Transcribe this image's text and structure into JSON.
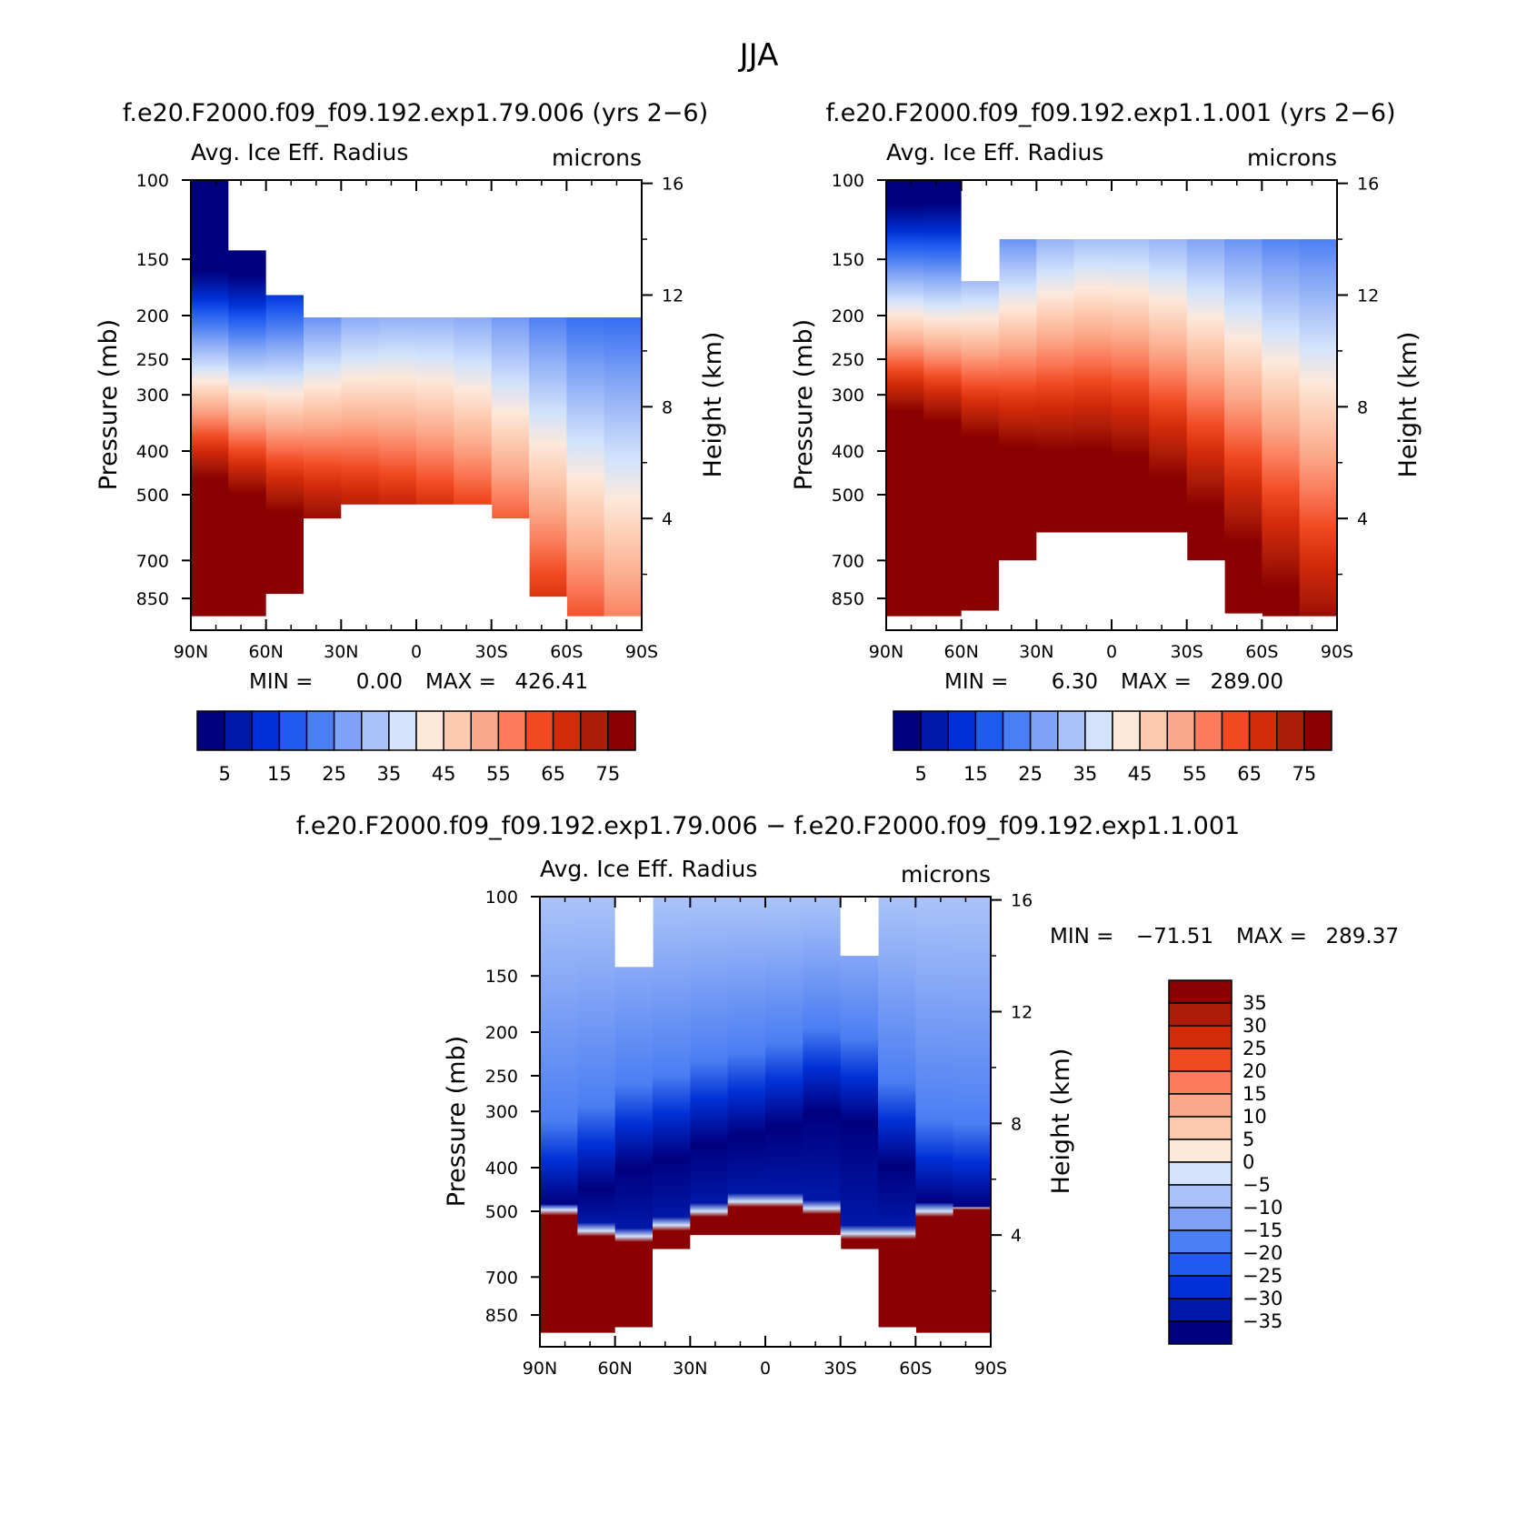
{
  "figure_title": "JJA",
  "colors": {
    "abs_levels": [
      "#00007f",
      "#0018a8",
      "#0031d6",
      "#1f5bf0",
      "#4c7ef3",
      "#7ea2f5",
      "#aac2f8",
      "#d2e3fb",
      "#fde8da",
      "#fdcab0",
      "#fba98a",
      "#fb7b5a",
      "#f14a22",
      "#d32a0a",
      "#ad1c08",
      "#8b0000"
    ],
    "diff_levels": [
      "#00007f",
      "#0018a8",
      "#0031d6",
      "#1f5bf0",
      "#4c7ef3",
      "#7ea2f5",
      "#aac2f8",
      "#d2e3fb",
      "#fde8da",
      "#fdcab0",
      "#fba98a",
      "#fb7b5a",
      "#f14a22",
      "#d32a0a",
      "#ad1c08",
      "#8b0000"
    ]
  },
  "chart_data": [
    {
      "type": "heatmap",
      "case_title": "f.e20.F2000.f09_f09.192.exp1.79.006 (yrs 2−6)",
      "title": "Avg. Ice Eff. Radius",
      "units": "microns",
      "xlabel": "",
      "ylabel": "Pressure (mb)",
      "y2label": "Height (km)",
      "x_ticklabels": [
        "90N",
        "60N",
        "30N",
        "0",
        "30S",
        "60S",
        "90S"
      ],
      "x_ticks": [
        90,
        60,
        30,
        0,
        -30,
        -60,
        -90
      ],
      "y_ticklabels": [
        "100",
        "150",
        "200",
        "250",
        "300",
        "400",
        "500",
        "700",
        "850"
      ],
      "y_ticks": [
        100,
        150,
        200,
        250,
        300,
        400,
        500,
        700,
        850
      ],
      "y2_ticklabels": [
        "16",
        "12",
        "8",
        "4"
      ],
      "y2_ticks": [
        16,
        12,
        8,
        4
      ],
      "ylim": [
        100,
        1000
      ],
      "scale": "log-pressure",
      "stats": {
        "min_label": "MIN =",
        "min": "0.00",
        "max_label": "MAX =",
        "max": "426.41"
      },
      "colorbar": {
        "orientation": "horizontal",
        "levels": [
          "5",
          "15",
          "25",
          "35",
          "45",
          "55",
          "65",
          "75"
        ]
      },
      "profile": {
        "lat": [
          90,
          75,
          60,
          45,
          30,
          15,
          0,
          -15,
          -30,
          -45,
          -60,
          -75,
          -90
        ],
        "z_mid_km": [
          9.3,
          9.0,
          8.6,
          8.9,
          9.3,
          9.5,
          9.4,
          9.3,
          8.8,
          7.8,
          6.6,
          5.6,
          5.2
        ],
        "width_km": [
          0.9,
          0.9,
          1.0,
          1.2,
          1.4,
          1.5,
          1.6,
          1.7,
          1.8,
          2.0,
          2.2,
          2.5,
          2.8
        ],
        "blank_top_km": [
          16.5,
          13.6,
          12.0,
          11.2,
          11.2,
          11.2,
          11.2,
          11.2,
          11.2,
          11.2,
          11.2,
          11.2,
          11.2
        ],
        "blank_bottom_km": [
          0.5,
          0.5,
          0.5,
          1.3,
          4.0,
          4.5,
          4.5,
          4.5,
          4.0,
          1.2,
          0.5,
          0.5,
          0.5
        ]
      },
      "data_label": "Avg. Ice Eff. Radius"
    },
    {
      "type": "heatmap",
      "case_title": "f.e20.F2000.f09_f09.192.exp1.1.001 (yrs 2−6)",
      "title": "Avg. Ice Eff. Radius",
      "units": "microns",
      "xlabel": "",
      "ylabel": "Pressure (mb)",
      "y2label": "Height (km)",
      "x_ticklabels": [
        "90N",
        "60N",
        "30N",
        "0",
        "30S",
        "60S",
        "90S"
      ],
      "x_ticks": [
        90,
        60,
        30,
        0,
        -30,
        -60,
        -90
      ],
      "y_ticklabels": [
        "100",
        "150",
        "200",
        "250",
        "300",
        "400",
        "500",
        "700",
        "850"
      ],
      "y_ticks": [
        100,
        150,
        200,
        250,
        300,
        400,
        500,
        700,
        850
      ],
      "y2_ticklabels": [
        "16",
        "12",
        "8",
        "4"
      ],
      "y2_ticks": [
        16,
        12,
        8,
        4
      ],
      "ylim": [
        100,
        1000
      ],
      "scale": "log-pressure",
      "stats": {
        "min_label": "MIN =",
        "min": "6.30",
        "max_label": "MAX =",
        "max": "289.00"
      },
      "colorbar": {
        "orientation": "horizontal",
        "levels": [
          "5",
          "15",
          "25",
          "35",
          "45",
          "55",
          "65",
          "75"
        ]
      },
      "profile": {
        "lat": [
          90,
          75,
          60,
          45,
          30,
          15,
          0,
          -15,
          -30,
          -45,
          -60,
          -75,
          -90
        ],
        "z_mid_km": [
          11.6,
          11.5,
          11.3,
          11.6,
          12.2,
          12.6,
          12.7,
          12.5,
          12.0,
          11.3,
          10.6,
          9.7,
          9.3
        ],
        "width_km": [
          0.9,
          0.9,
          1.0,
          1.2,
          1.4,
          1.5,
          1.5,
          1.6,
          1.7,
          1.8,
          2.0,
          2.2,
          2.5
        ],
        "blank_top_km": [
          16.5,
          16.5,
          12.5,
          12.0,
          14.0,
          14.0,
          14.0,
          14.0,
          14.0,
          14.0,
          14.0,
          14.0,
          14.0
        ],
        "blank_bottom_km": [
          0.5,
          0.5,
          0.5,
          0.7,
          2.5,
          3.5,
          3.5,
          3.5,
          2.5,
          0.6,
          0.5,
          0.5,
          0.5
        ]
      }
    },
    {
      "type": "heatmap",
      "case_title": "f.e20.F2000.f09_f09.192.exp1.79.006 − f.e20.F2000.f09_f09.192.exp1.1.001",
      "title": "Avg. Ice Eff. Radius",
      "units": "microns",
      "xlabel": "",
      "ylabel": "Pressure (mb)",
      "y2label": "Height (km)",
      "x_ticklabels": [
        "90N",
        "60N",
        "30N",
        "0",
        "30S",
        "60S",
        "90S"
      ],
      "x_ticks": [
        90,
        60,
        30,
        0,
        -30,
        -60,
        -90
      ],
      "y_ticklabels": [
        "100",
        "150",
        "200",
        "250",
        "300",
        "400",
        "500",
        "700",
        "850"
      ],
      "y_ticks": [
        100,
        150,
        200,
        250,
        300,
        400,
        500,
        700,
        850
      ],
      "y2_ticklabels": [
        "16",
        "12",
        "8",
        "4"
      ],
      "y2_ticks": [
        16,
        12,
        8,
        4
      ],
      "ylim": [
        100,
        1000
      ],
      "scale": "log-pressure",
      "stats": {
        "min_label": "MIN =",
        "min": "−71.51",
        "max_label": "MAX =",
        "max": "289.37"
      },
      "colorbar": {
        "orientation": "vertical",
        "levels": [
          "35",
          "30",
          "25",
          "20",
          "15",
          "10",
          "5",
          "0",
          "−5",
          "−10",
          "−15",
          "−20",
          "−25",
          "−30",
          "−35"
        ]
      },
      "profile": {
        "lat": [
          90,
          75,
          60,
          45,
          30,
          15,
          0,
          -15,
          -30,
          -45,
          -60,
          -75,
          -90
        ],
        "z_mid_km": [
          5.2,
          5.0,
          6.3,
          6.5,
          7.0,
          7.5,
          7.6,
          8.2,
          8.6,
          7.5,
          5.5,
          4.8,
          5.2
        ],
        "width_km": [
          1.5,
          1.5,
          1.5,
          1.6,
          1.7,
          1.8,
          1.8,
          1.9,
          2.0,
          2.0,
          2.0,
          1.8,
          1.8
        ],
        "red_top_km": [
          5.0,
          4.4,
          3.5,
          4.0,
          4.3,
          5.0,
          5.0,
          5.0,
          4.5,
          3.2,
          4.5,
          4.8,
          5.0
        ],
        "blank_top_km": [
          16.5,
          16.5,
          13.6,
          13.6,
          16.5,
          16.5,
          16.5,
          16.5,
          14.0,
          14.0,
          16.5,
          16.5,
          16.5
        ],
        "blank_bottom_km": [
          0.5,
          0.5,
          0.5,
          0.7,
          3.5,
          4.0,
          4.0,
          4.0,
          3.5,
          0.7,
          0.5,
          0.5,
          0.5
        ]
      }
    }
  ]
}
